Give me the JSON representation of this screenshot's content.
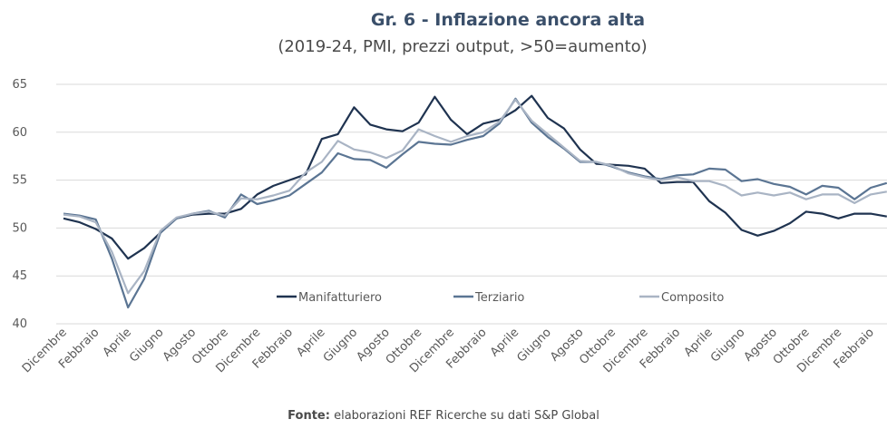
{
  "chart_data": {
    "type": "line",
    "title": "Gr. 6 - Inflazione ancora alta",
    "subtitle": "(2019-24, PMI, prezzi output, >50=aumento)",
    "source_label": "Fonte:",
    "source": "elaborazioni REF Ricerche su dati S&P Global",
    "categories": [
      "Dicembre",
      null,
      "Febbraio",
      null,
      "Aprile",
      null,
      "Giugno",
      null,
      "Agosto",
      null,
      "Ottobre",
      null,
      "Dicembre",
      null,
      "Febbraio",
      null,
      "Aprile",
      null,
      "Giugno",
      null,
      "Agosto",
      null,
      "Ottobre",
      null,
      "Dicembre",
      null,
      "Febbraio",
      null,
      "Aprile",
      null,
      "Giugno",
      null,
      "Agosto",
      null,
      "Ottobre",
      null,
      "Dicembre",
      null,
      "Febbraio",
      null,
      "Aprile",
      null,
      "Giugno",
      null,
      "Agosto",
      null,
      "Ottobre",
      null,
      "Dicembre",
      null,
      "Febbraio",
      null
    ],
    "series": [
      {
        "name": "Manifatturiero",
        "color": "#1f3350",
        "values": [
          51.0,
          50.6,
          49.9,
          48.9,
          46.8,
          47.9,
          49.5,
          51.0,
          51.4,
          51.5,
          51.5,
          52.0,
          53.5,
          54.4,
          55.0,
          55.6,
          59.3,
          59.8,
          62.6,
          60.8,
          60.3,
          60.1,
          61.0,
          63.7,
          61.3,
          59.8,
          60.9,
          61.3,
          62.3,
          63.8,
          61.5,
          60.4,
          58.2,
          56.7,
          56.6,
          56.5,
          56.2,
          54.7,
          54.8,
          54.8,
          52.8,
          51.6,
          49.8,
          49.2,
          49.7,
          50.5,
          51.7,
          51.5,
          51.0,
          51.5,
          51.5,
          51.2
        ]
      },
      {
        "name": "Terziario",
        "color": "#5b7593",
        "values": [
          51.5,
          51.3,
          50.9,
          46.8,
          41.7,
          44.7,
          49.5,
          51.0,
          51.5,
          51.8,
          51.1,
          53.5,
          52.5,
          52.9,
          53.4,
          54.6,
          55.8,
          57.8,
          57.2,
          57.1,
          56.3,
          57.7,
          59.0,
          58.8,
          58.7,
          59.2,
          59.6,
          60.9,
          63.5,
          61.0,
          59.5,
          58.3,
          56.9,
          56.9,
          56.4,
          55.8,
          55.4,
          55.1,
          55.5,
          55.6,
          56.2,
          56.1,
          54.9,
          55.1,
          54.6,
          54.3,
          53.5,
          54.4,
          54.2,
          53.0,
          54.2,
          54.7
        ]
      },
      {
        "name": "Composito",
        "color": "#a9b4c4",
        "values": [
          51.4,
          51.2,
          50.6,
          47.5,
          43.2,
          45.5,
          49.7,
          51.1,
          51.5,
          51.7,
          51.3,
          53.1,
          53.0,
          53.4,
          53.9,
          55.8,
          56.9,
          59.1,
          58.2,
          57.9,
          57.3,
          58.1,
          60.3,
          59.6,
          59.0,
          59.6,
          60.0,
          61.1,
          63.4,
          61.2,
          59.8,
          58.4,
          57.0,
          56.9,
          56.5,
          55.7,
          55.3,
          55.0,
          55.3,
          54.9,
          54.9,
          54.4,
          53.4,
          53.7,
          53.4,
          53.7,
          53.0,
          53.5,
          53.5,
          52.6,
          53.5,
          53.8
        ]
      }
    ],
    "ylim": [
      40,
      65
    ],
    "yticks": [
      40,
      45,
      50,
      55,
      60,
      65
    ],
    "grid": true,
    "legend": "bottom"
  }
}
